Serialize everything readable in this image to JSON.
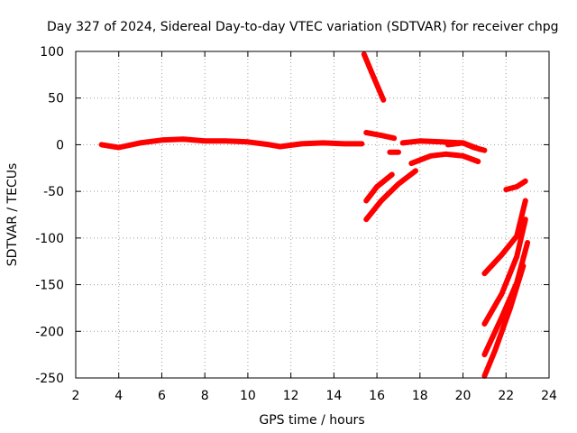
{
  "chart_data": {
    "type": "scatter",
    "title": "Day 327 of 2024, Sidereal Day-to-day VTEC variation (SDTVAR) for receiver chpg",
    "xlabel": "GPS time / hours",
    "ylabel": "SDTVAR / TECUs",
    "xlim": [
      2,
      24
    ],
    "ylim": [
      -250,
      100
    ],
    "xticks": [
      2,
      4,
      6,
      8,
      10,
      12,
      14,
      16,
      18,
      20,
      22,
      24
    ],
    "yticks": [
      -250,
      -200,
      -150,
      -100,
      -50,
      0,
      50,
      100
    ],
    "grid": true,
    "marker_color": "#ff0000",
    "series": [
      {
        "name": "track-main",
        "points": [
          [
            3.2,
            0
          ],
          [
            4.0,
            -3
          ],
          [
            5.0,
            2
          ],
          [
            6.0,
            5
          ],
          [
            7.0,
            6
          ],
          [
            8.0,
            4
          ],
          [
            9.0,
            4
          ],
          [
            10.0,
            3
          ],
          [
            11.0,
            0
          ],
          [
            11.5,
            -2
          ],
          [
            12.5,
            1
          ],
          [
            13.5,
            2
          ],
          [
            14.5,
            1
          ],
          [
            15.3,
            1
          ]
        ]
      },
      {
        "name": "track-a",
        "points": [
          [
            15.4,
            97
          ],
          [
            15.8,
            75
          ],
          [
            16.3,
            48
          ]
        ]
      },
      {
        "name": "track-b",
        "points": [
          [
            15.5,
            13
          ],
          [
            16.2,
            10
          ],
          [
            16.8,
            7
          ]
        ]
      },
      {
        "name": "track-c",
        "points": [
          [
            16.6,
            -8
          ],
          [
            17.0,
            -8
          ]
        ]
      },
      {
        "name": "track-d",
        "points": [
          [
            17.2,
            2
          ],
          [
            18.0,
            4
          ],
          [
            19.0,
            3
          ],
          [
            20.0,
            2
          ],
          [
            20.5,
            -3
          ],
          [
            21.0,
            -6
          ]
        ]
      },
      {
        "name": "track-e",
        "points": [
          [
            19.3,
            0
          ],
          [
            20.0,
            2
          ],
          [
            20.8,
            -5
          ]
        ]
      },
      {
        "name": "track-f",
        "points": [
          [
            15.5,
            -60
          ],
          [
            16.0,
            -45
          ],
          [
            16.7,
            -32
          ]
        ]
      },
      {
        "name": "track-g",
        "points": [
          [
            15.5,
            -80
          ],
          [
            16.2,
            -60
          ],
          [
            17.0,
            -42
          ],
          [
            17.8,
            -28
          ]
        ]
      },
      {
        "name": "track-h",
        "points": [
          [
            17.6,
            -20
          ],
          [
            18.5,
            -12
          ],
          [
            19.2,
            -10
          ],
          [
            20.0,
            -12
          ],
          [
            20.7,
            -18
          ]
        ]
      },
      {
        "name": "track-i",
        "points": [
          [
            21.0,
            -138
          ],
          [
            21.8,
            -118
          ],
          [
            22.5,
            -98
          ],
          [
            22.9,
            -60
          ]
        ]
      },
      {
        "name": "track-j",
        "points": [
          [
            21.0,
            -192
          ],
          [
            21.8,
            -160
          ],
          [
            22.5,
            -120
          ],
          [
            22.9,
            -80
          ]
        ]
      },
      {
        "name": "track-k",
        "points": [
          [
            21.0,
            -225
          ],
          [
            21.8,
            -185
          ],
          [
            22.5,
            -148
          ],
          [
            23.0,
            -105
          ]
        ]
      },
      {
        "name": "track-l",
        "points": [
          [
            21.0,
            -248
          ],
          [
            21.5,
            -220
          ],
          [
            22.2,
            -175
          ],
          [
            22.8,
            -130
          ]
        ]
      },
      {
        "name": "track-m",
        "points": [
          [
            22.0,
            -48
          ],
          [
            22.5,
            -45
          ],
          [
            22.9,
            -39
          ]
        ]
      }
    ]
  }
}
